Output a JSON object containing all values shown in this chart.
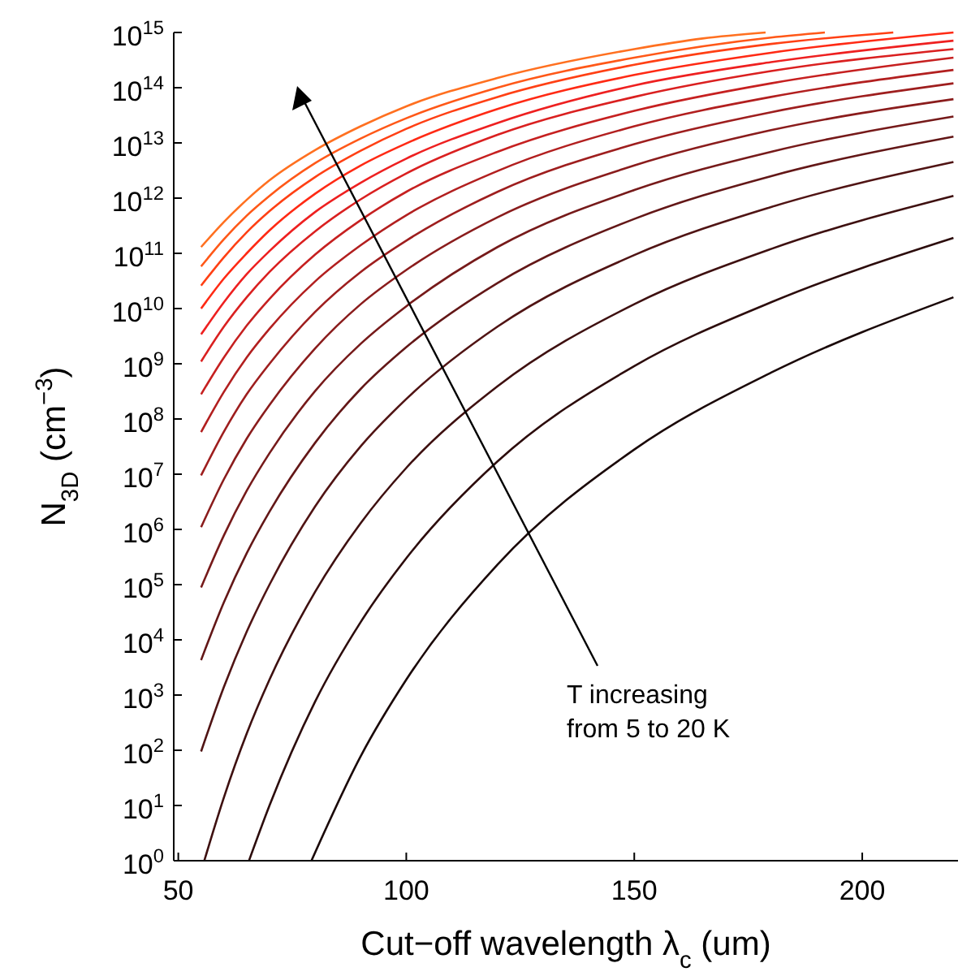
{
  "chart_data": {
    "type": "line",
    "xlabel": "Cut−off wavelength λ$_{c}$ (um)",
    "ylabel": "N$_{3D}$ (cm$^{−3}$)",
    "log": "y",
    "xlim": [
      49,
      221
    ],
    "ylim": [
      1,
      1000000000000000.0
    ],
    "xticks": [
      50,
      100,
      150,
      200
    ],
    "yticks": [
      {
        "value": 1,
        "label": "10$^{0}$"
      },
      {
        "value": 10,
        "label": "10$^{1}$"
      },
      {
        "value": 100,
        "label": "10$^{2}$"
      },
      {
        "value": 1000.0,
        "label": "10$^{3}$"
      },
      {
        "value": 10000.0,
        "label": "10$^{4}$"
      },
      {
        "value": 100000.0,
        "label": "10$^{5}$"
      },
      {
        "value": 1000000.0,
        "label": "10$^{6}$"
      },
      {
        "value": 10000000.0,
        "label": "10$^{7}$"
      },
      {
        "value": 100000000.0,
        "label": "10$^{8}$"
      },
      {
        "value": 1000000000.0,
        "label": "10$^{9}$"
      },
      {
        "value": 10000000000.0,
        "label": "10$^{10}$"
      },
      {
        "value": 100000000000.0,
        "label": "10$^{11}$"
      },
      {
        "value": 1000000000000.0,
        "label": "10$^{12}$"
      },
      {
        "value": 10000000000000.0,
        "label": "10$^{13}$"
      },
      {
        "value": 100000000000000.0,
        "label": "10$^{14}$"
      },
      {
        "value": 1000000000000000.0,
        "label": "10$^{15}$"
      }
    ],
    "annotations": [
      "T increasing\nfrom 5 to 20 K"
    ],
    "series": [
      {
        "color": "#1a0808",
        "x": [
          79.2,
          90,
          100,
          120,
          150,
          180,
          220
        ],
        "values": [
          1,
          78,
          1900,
          230000.0,
          28000000.0,
          690000000.0,
          16000000000.0
        ]
      },
      {
        "color": "#2c0c0c",
        "x": [
          65.5,
          70,
          80,
          90,
          100,
          120,
          150,
          180,
          220
        ],
        "values": [
          1,
          10,
          760,
          21000.0,
          300000.0,
          17000000.0,
          910000000.0,
          13000000000.0,
          190000000000.0
        ]
      },
      {
        "color": "#3e1010",
        "x": [
          55.7,
          60,
          65,
          70,
          80,
          90,
          100,
          120,
          150,
          180,
          220
        ],
        "values": [
          1,
          14,
          200,
          1900,
          74000.0,
          1300000.0,
          13000000.0,
          390000000.0,
          12000000000.0,
          120000000000.0,
          1100000000000.0
        ]
      },
      {
        "color": "#501414",
        "x": [
          55,
          60,
          65,
          70,
          80,
          90,
          100,
          120,
          150,
          180,
          220
        ],
        "values": [
          95,
          1400,
          14000.0,
          100000.0,
          2600000.0,
          32000000.0,
          230000000.0,
          4700000000.0,
          93000000000.0,
          690000000000.0,
          4500000000000.0
        ]
      },
      {
        "color": "#631717",
        "x": [
          55,
          60,
          65,
          70,
          80,
          90,
          100,
          120,
          150,
          180,
          220
        ],
        "values": [
          4300,
          48000.0,
          370000.0,
          2100000.0,
          37000000.0,
          350000000.0,
          2000000000.0,
          29000000000.0,
          420000000000.0,
          2500000000000.0,
          13000000000000.0
        ]
      },
      {
        "color": "#761a1a",
        "x": [
          55,
          60,
          65,
          70,
          80,
          90,
          100,
          120,
          150,
          180,
          220
        ],
        "values": [
          89000.0,
          780000.0,
          5000000.0,
          24000000.0,
          320000000.0,
          2300000000.0,
          11000000000.0,
          130000000000.0,
          1400000000000.0,
          6900000000000.0,
          30000000000000.0
        ]
      },
      {
        "color": "#8a1c1c",
        "x": [
          55,
          60,
          65,
          70,
          80,
          90,
          100,
          120,
          150,
          180,
          220
        ],
        "values": [
          1100000.0,
          8100000.0,
          44000000.0,
          180000000.0,
          1900000000.0,
          12000000000.0,
          50000000000.0,
          450000000000.0,
          3900000000000.0,
          17000000000000.0,
          62000000000000.0
        ]
      },
      {
        "color": "#9e1e1e",
        "x": [
          55,
          60,
          65,
          70,
          80,
          90,
          100,
          120,
          150,
          180,
          220
        ],
        "values": [
          9500000.0,
          59000000.0,
          280000000.0,
          1000000000.0,
          8700000000.0,
          46000000000.0,
          170000000000.0,
          1300000000000.0,
          9500000000000.0,
          36000000000000.0,
          120000000000000.0
        ]
      },
      {
        "color": "#b21f1f",
        "x": [
          55,
          60,
          65,
          70,
          80,
          90,
          100,
          120,
          150,
          180,
          220
        ],
        "values": [
          58000000.0,
          310000000.0,
          1300000000.0,
          4300000000.0,
          31000000000.0,
          140000000000.0,
          490000000000.0,
          3100000000000.0,
          20000000000000.0,
          68000000000000.0,
          210000000000000.0
        ]
      },
      {
        "color": "#c62020",
        "x": [
          55,
          60,
          65,
          70,
          80,
          90,
          100,
          120,
          150,
          180,
          220
        ],
        "values": [
          280000000.0,
          1300000000.0,
          4900000000.0,
          15000000000.0,
          95000000000.0,
          400000000000.0,
          1300000000000.0,
          6900000000000.0,
          38000000000000.0,
          120000000000000.0,
          350000000000000.0
        ]
      },
      {
        "color": "#da2020",
        "x": [
          55,
          60,
          65,
          70,
          80,
          90,
          100,
          120,
          150,
          180,
          220
        ],
        "values": [
          1100000000.0,
          4700000000.0,
          16000000000.0,
          46000000000.0,
          250000000000.0,
          950000000000.0,
          2800000000000.0,
          14000000000000.0,
          68000000000000.0,
          200000000000000.0,
          500000000000000.0
        ]
      },
      {
        "color": "#ee2020",
        "x": [
          55,
          60,
          65,
          70,
          80,
          90,
          100,
          120,
          150,
          180,
          220
        ],
        "values": [
          3400000000.0,
          13000000000.0,
          42000000000.0,
          110000000000.0,
          560000000000.0,
          1900000000000.0,
          5200000000000.0,
          23000000000000.0,
          110000000000000.0,
          290000000000000.0,
          710000000000000.0
        ]
      },
      {
        "color": "#ff2a14",
        "x": [
          55,
          60,
          65,
          70,
          80,
          90,
          100,
          120,
          150,
          180,
          220
        ],
        "values": [
          10000000000.0,
          35000000000.0,
          100000000000.0,
          260000000000.0,
          1200000000000.0,
          3900000000000.0,
          9800000000000.0,
          41000000000000.0,
          170000000000000.0,
          430000000000000.0,
          1000000000000000.0
        ]
      },
      {
        "color": "#ff4014",
        "x": [
          55,
          60,
          65,
          70,
          80,
          90,
          100,
          120,
          150,
          180,
          206.8
        ],
        "values": [
          26000000000.0,
          85000000000.0,
          240000000000.0,
          580000000000.0,
          2400000000000.0,
          7200000000000.0,
          18000000000000.0,
          68000000000000.0,
          260000000000000.0,
          620000000000000.0,
          1000000000000000.0
        ]
      },
      {
        "color": "#ff5818",
        "x": [
          55,
          60,
          65,
          70,
          80,
          90,
          100,
          120,
          150,
          180,
          191.8
        ],
        "values": [
          58000000000.0,
          180000000000.0,
          480000000000.0,
          1100000000000.0,
          4300000000000.0,
          12000000000000.0,
          28000000000000.0,
          100000000000000.0,
          350000000000000.0,
          810000000000000.0,
          1000000000000000.0
        ]
      },
      {
        "color": "#ff7020",
        "x": [
          55,
          60,
          65,
          70,
          80,
          90,
          100,
          120,
          150,
          165,
          178.8
        ],
        "values": [
          130000000000.0,
          370000000000.0,
          930000000000.0,
          2100000000000.0,
          7400000000000.0,
          20000000000000.0,
          46000000000000.0,
          150000000000000.0,
          500000000000000.0,
          780000000000000.0,
          1000000000000000.0
        ]
      }
    ]
  }
}
